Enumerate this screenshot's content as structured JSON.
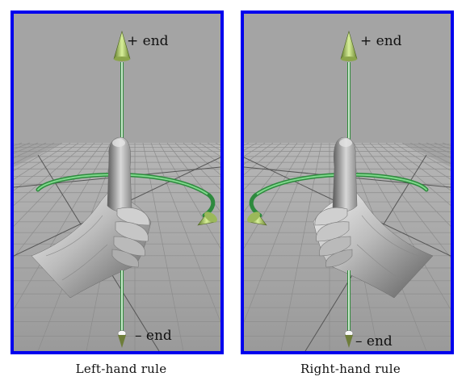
{
  "left": {
    "caption": "Left-hand rule",
    "plus_label": "+ end",
    "minus_label": "– end"
  },
  "right": {
    "caption": "Right-hand rule",
    "plus_label": "+ end",
    "minus_label": "– end"
  }
}
